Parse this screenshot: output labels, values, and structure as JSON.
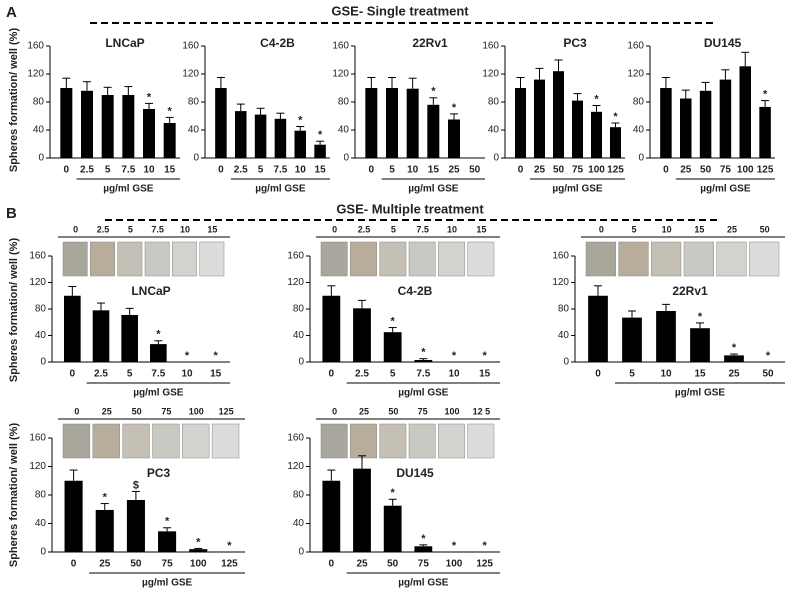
{
  "panel_labels": [
    "A",
    "B"
  ],
  "section_titles": [
    "GSE- Single treatment",
    "GSE- Multiple treatment"
  ],
  "chart_data": [
    {
      "type": "bar",
      "title": "LNCaP",
      "ylabel": "Spheres formation/ well (%)",
      "xlabel": "µg/ml GSE",
      "color": "#000000",
      "categories": [
        "0",
        "2.5",
        "5",
        "7.5",
        "10",
        "15"
      ],
      "values": [
        100,
        96,
        90,
        90,
        70,
        50
      ],
      "errors": [
        14,
        13,
        11,
        12,
        8,
        8
      ],
      "markers": [
        null,
        null,
        null,
        null,
        "*",
        "*"
      ],
      "ylim": [
        0,
        160
      ],
      "yticks": [
        0,
        40,
        80,
        120,
        160
      ]
    },
    {
      "type": "bar",
      "title": "C4-2B",
      "xlabel": "µg/ml GSE",
      "color": "#000000",
      "categories": [
        "0",
        "2.5",
        "5",
        "7.5",
        "10",
        "15"
      ],
      "values": [
        100,
        67,
        62,
        56,
        39,
        19
      ],
      "errors": [
        15,
        10,
        9,
        8,
        6,
        5
      ],
      "markers": [
        null,
        null,
        null,
        null,
        "*",
        "*"
      ],
      "ylim": [
        0,
        160
      ],
      "yticks": [
        0,
        40,
        80,
        120,
        160
      ]
    },
    {
      "type": "bar",
      "title": "22Rv1",
      "xlabel": "µg/ml GSE",
      "color": "#000000",
      "categories": [
        "0",
        "5",
        "10",
        "15",
        "25",
        "50"
      ],
      "values": [
        100,
        100,
        99,
        76,
        55,
        0
      ],
      "errors": [
        15,
        15,
        15,
        10,
        8,
        0
      ],
      "markers": [
        null,
        null,
        null,
        "*",
        "*",
        null
      ],
      "ylim": [
        0,
        160
      ],
      "yticks": [
        0,
        40,
        80,
        120,
        160
      ]
    },
    {
      "type": "bar",
      "title": "PC3",
      "xlabel": "µg/ml GSE",
      "color": "#000000",
      "categories": [
        "0",
        "25",
        "50",
        "75",
        "100",
        "125"
      ],
      "values": [
        100,
        112,
        124,
        82,
        66,
        44
      ],
      "errors": [
        15,
        16,
        16,
        10,
        9,
        6
      ],
      "markers": [
        null,
        null,
        null,
        null,
        "*",
        "*"
      ],
      "ylim": [
        0,
        160
      ],
      "yticks": [
        0,
        40,
        80,
        120,
        160
      ]
    },
    {
      "type": "bar",
      "title": "DU145",
      "xlabel": "µg/ml GSE",
      "color": "#000000",
      "categories": [
        "0",
        "25",
        "50",
        "75",
        "100",
        "125"
      ],
      "values": [
        100,
        85,
        96,
        112,
        131,
        73
      ],
      "errors": [
        15,
        12,
        12,
        14,
        20,
        9
      ],
      "markers": [
        null,
        null,
        null,
        null,
        null,
        "*"
      ],
      "ylim": [
        0,
        160
      ],
      "yticks": [
        0,
        40,
        80,
        120,
        160
      ]
    },
    {
      "type": "bar",
      "title": "LNCaP",
      "ylabel": "Spheres formation/ well (%)",
      "xlabel": "µg/ml GSE",
      "color": "#000000",
      "image_labels": [
        "0",
        "2.5",
        "5",
        "7.5",
        "10",
        "15"
      ],
      "categories": [
        "0",
        "2.5",
        "5",
        "7.5",
        "10",
        "15"
      ],
      "values": [
        100,
        78,
        71,
        27,
        0,
        0
      ],
      "errors": [
        14,
        11,
        10,
        5,
        0,
        0
      ],
      "markers": [
        null,
        null,
        null,
        "*",
        "*",
        "*"
      ],
      "ylim": [
        0,
        160
      ],
      "yticks": [
        0,
        40,
        80,
        120,
        160
      ]
    },
    {
      "type": "bar",
      "title": "C4-2B",
      "xlabel": "µg/ml GSE",
      "color": "#000000",
      "image_labels": [
        "0",
        "2.5",
        "5",
        "7.5",
        "10",
        "15"
      ],
      "categories": [
        "0",
        "2.5",
        "5",
        "7.5",
        "10",
        "15"
      ],
      "values": [
        100,
        81,
        45,
        3,
        0,
        0
      ],
      "errors": [
        15,
        12,
        7,
        2,
        0,
        0
      ],
      "markers": [
        null,
        null,
        "*",
        "*",
        "*",
        "*"
      ],
      "ylim": [
        0,
        160
      ],
      "yticks": [
        0,
        40,
        80,
        120,
        160
      ]
    },
    {
      "type": "bar",
      "title": "22Rv1",
      "xlabel": "µg/ml GSE",
      "color": "#000000",
      "image_labels": [
        "0",
        "5",
        "10",
        "15",
        "25",
        "50"
      ],
      "categories": [
        "0",
        "5",
        "10",
        "15",
        "25",
        "50"
      ],
      "values": [
        100,
        67,
        77,
        51,
        10,
        0
      ],
      "errors": [
        15,
        10,
        10,
        8,
        2,
        0
      ],
      "markers": [
        null,
        null,
        null,
        "*",
        "*",
        "*"
      ],
      "ylim": [
        0,
        160
      ],
      "yticks": [
        0,
        40,
        80,
        120,
        160
      ]
    },
    {
      "type": "bar",
      "title": "PC3",
      "ylabel": "Spheres formation/ well (%)",
      "xlabel": "µg/ml GSE",
      "color": "#000000",
      "image_labels": [
        "0",
        "25",
        "50",
        "75",
        "100",
        "125"
      ],
      "categories": [
        "0",
        "25",
        "50",
        "75",
        "100",
        "125"
      ],
      "values": [
        100,
        59,
        73,
        29,
        4,
        0
      ],
      "errors": [
        15,
        9,
        12,
        5,
        1,
        0
      ],
      "markers": [
        null,
        "*",
        "$",
        "*",
        "*",
        "*"
      ],
      "ylim": [
        0,
        160
      ],
      "yticks": [
        0,
        40,
        80,
        120,
        160
      ]
    },
    {
      "type": "bar",
      "title": "DU145",
      "xlabel": "µg/ml GSE",
      "color": "#000000",
      "image_labels": [
        "0",
        "25",
        "50",
        "75",
        "100",
        "12 5"
      ],
      "categories": [
        "0",
        "25",
        "50",
        "75",
        "100",
        "125"
      ],
      "values": [
        100,
        117,
        65,
        8,
        0,
        0
      ],
      "errors": [
        15,
        18,
        9,
        2,
        0,
        0
      ],
      "markers": [
        null,
        null,
        "*",
        "*",
        "*",
        "*"
      ],
      "ylim": [
        0,
        160
      ],
      "yticks": [
        0,
        40,
        80,
        120,
        160
      ]
    }
  ]
}
